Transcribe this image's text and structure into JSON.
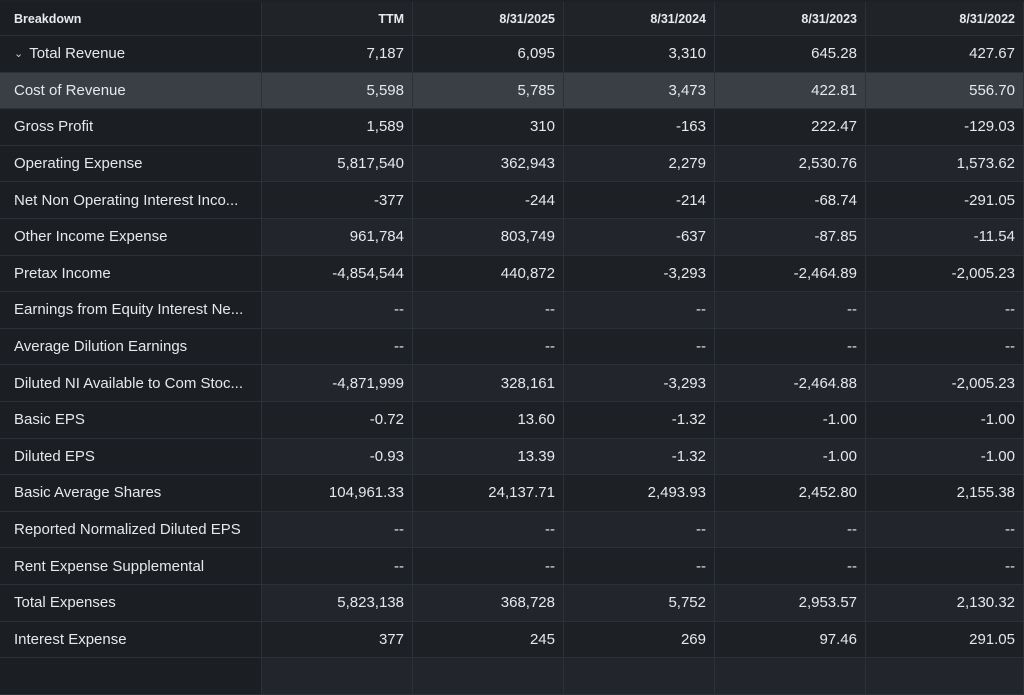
{
  "headers": [
    "Breakdown",
    "TTM",
    "8/31/2025",
    "8/31/2024",
    "8/31/2023",
    "8/31/2022"
  ],
  "rows": [
    {
      "label": "Total Revenue",
      "values": [
        "7,187",
        "6,095",
        "3,310",
        "645.28",
        "427.67"
      ],
      "expanded": true
    },
    {
      "label": "Cost of Revenue",
      "values": [
        "5,598",
        "5,785",
        "3,473",
        "422.81",
        "556.70"
      ],
      "highlighted": true
    },
    {
      "label": "Gross Profit",
      "values": [
        "1,589",
        "310",
        "-163",
        "222.47",
        "-129.03"
      ]
    },
    {
      "label": "Operating Expense",
      "values": [
        "5,817,540",
        "362,943",
        "2,279",
        "2,530.76",
        "1,573.62"
      ]
    },
    {
      "label": "Net Non Operating Interest Inco...",
      "values": [
        "-377",
        "-244",
        "-214",
        "-68.74",
        "-291.05"
      ]
    },
    {
      "label": "Other Income Expense",
      "values": [
        "961,784",
        "803,749",
        "-637",
        "-87.85",
        "-11.54"
      ]
    },
    {
      "label": "Pretax Income",
      "values": [
        "-4,854,544",
        "440,872",
        "-3,293",
        "-2,464.89",
        "-2,005.23"
      ]
    },
    {
      "label": "Earnings from Equity Interest Ne...",
      "values": [
        "--",
        "--",
        "--",
        "--",
        "--"
      ]
    },
    {
      "label": "Average Dilution Earnings",
      "values": [
        "--",
        "--",
        "--",
        "--",
        "--"
      ]
    },
    {
      "label": "Diluted NI Available to Com Stoc...",
      "values": [
        "-4,871,999",
        "328,161",
        "-3,293",
        "-2,464.88",
        "-2,005.23"
      ]
    },
    {
      "label": "Basic EPS",
      "values": [
        "-0.72",
        "13.60",
        "-1.32",
        "-1.00",
        "-1.00"
      ]
    },
    {
      "label": "Diluted EPS",
      "values": [
        "-0.93",
        "13.39",
        "-1.32",
        "-1.00",
        "-1.00"
      ]
    },
    {
      "label": "Basic Average Shares",
      "values": [
        "104,961.33",
        "24,137.71",
        "2,493.93",
        "2,452.80",
        "2,155.38"
      ]
    },
    {
      "label": "Reported Normalized Diluted EPS",
      "values": [
        "--",
        "--",
        "--",
        "--",
        "--"
      ]
    },
    {
      "label": "Rent Expense Supplemental",
      "values": [
        "--",
        "--",
        "--",
        "--",
        "--"
      ]
    },
    {
      "label": "Total Expenses",
      "values": [
        "5,823,138",
        "368,728",
        "5,752",
        "2,953.57",
        "2,130.32"
      ]
    },
    {
      "label": "Interest Expense",
      "values": [
        "377",
        "245",
        "269",
        "97.46",
        "291.05"
      ]
    },
    {
      "label": "",
      "values": [
        "",
        "",
        "",
        "",
        ""
      ]
    }
  ],
  "chevron_icon": "chevron-down-icon"
}
